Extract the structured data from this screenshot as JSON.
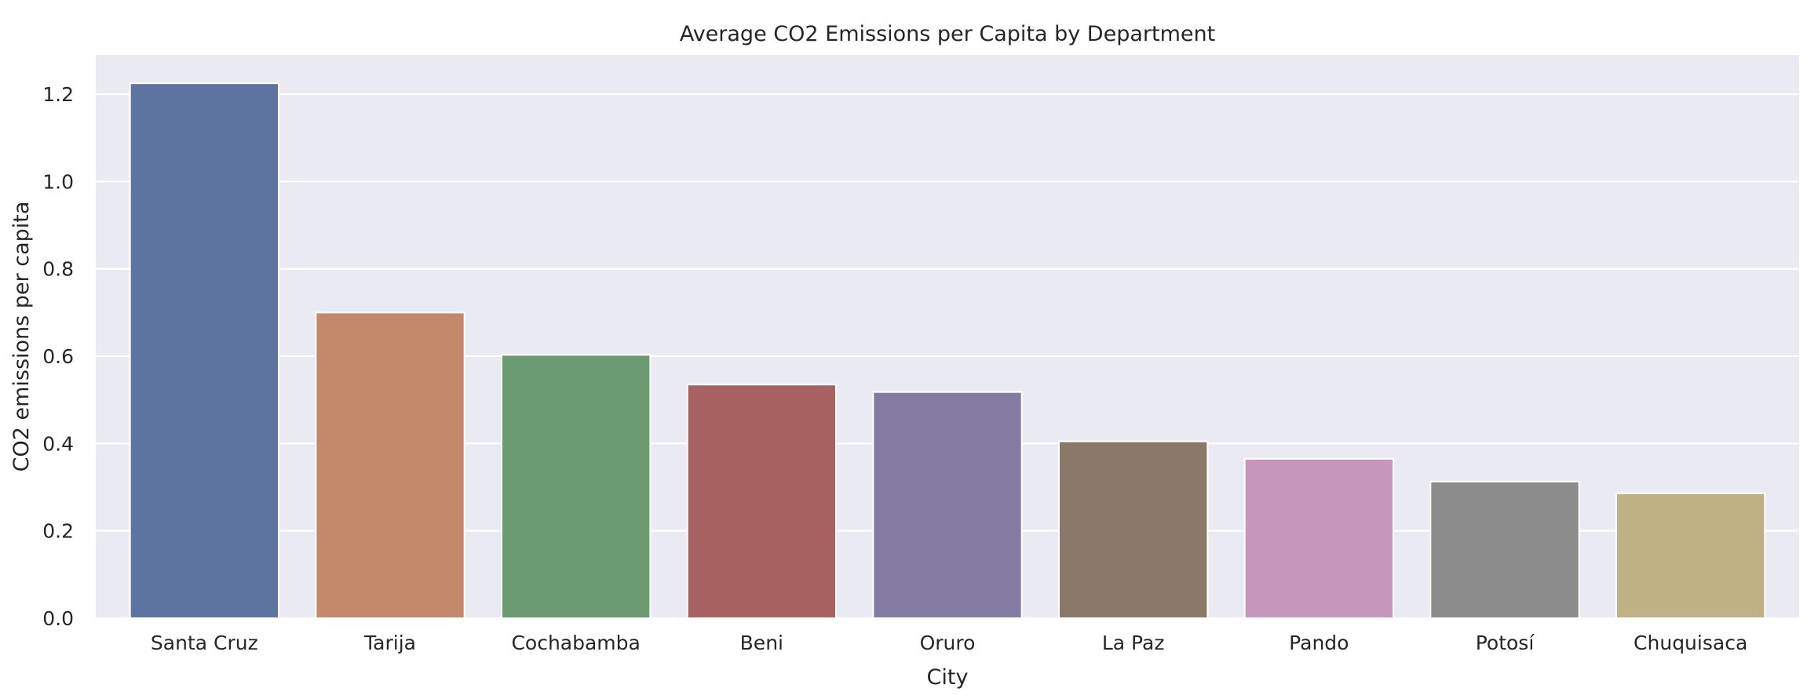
{
  "chart_data": {
    "type": "bar",
    "title": "Average CO2 Emissions per Capita by Department",
    "xlabel": "City",
    "ylabel": "CO2 emissions per capita",
    "categories": [
      "Santa Cruz",
      "Tarija",
      "Cochabamba",
      "Beni",
      "Oruro",
      "La Paz",
      "Pando",
      "Potosí",
      "Chuquisaca"
    ],
    "values": [
      1.225,
      0.7,
      0.603,
      0.535,
      0.518,
      0.405,
      0.365,
      0.313,
      0.286
    ],
    "colors": [
      "#5e74a0",
      "#c3886a",
      "#6b9a72",
      "#a86262",
      "#847ba3",
      "#8a7868",
      "#c796bb",
      "#8c8c8c",
      "#bfb184"
    ],
    "yticks": [
      "0.0",
      "0.2",
      "0.4",
      "0.6",
      "0.8",
      "1.0",
      "1.2"
    ],
    "ylim": [
      0,
      1.29
    ],
    "grid": true,
    "background": "#eaeaf2",
    "grid_color": "#ffffff"
  }
}
